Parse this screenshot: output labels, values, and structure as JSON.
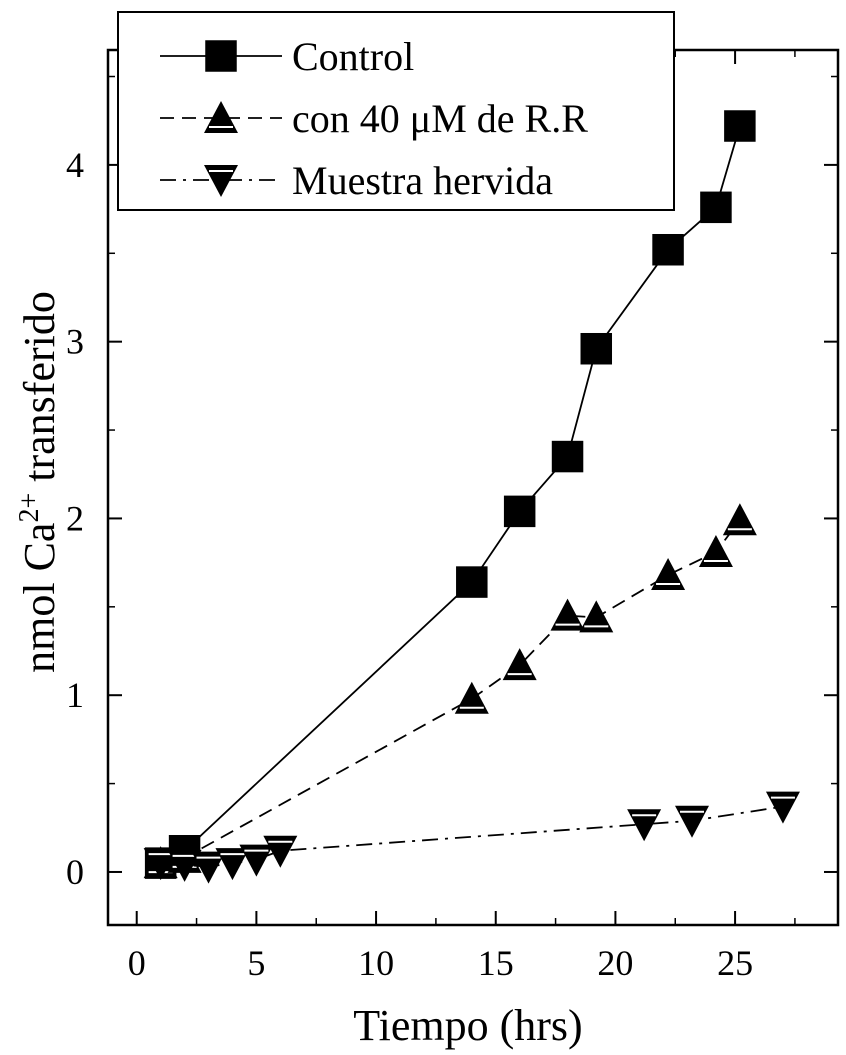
{
  "chart_data": {
    "type": "line",
    "title": "",
    "xlabel": "Tiempo (hrs)",
    "ylabel_parts": {
      "prefix": "nmol Ca",
      "superscript": "2+",
      "suffix": " transferido"
    },
    "xlim": [
      -1.2,
      29.3
    ],
    "ylim": [
      -0.3,
      4.65
    ],
    "x_ticks": [
      0,
      5,
      10,
      15,
      20,
      25
    ],
    "y_ticks": [
      0,
      1,
      2,
      3,
      4
    ],
    "x_tick_labels": [
      "0",
      "5",
      "10",
      "15",
      "20",
      "25"
    ],
    "y_tick_labels": [
      "0",
      "1",
      "2",
      "3",
      "4"
    ],
    "grid": false,
    "legend_position": "top-left",
    "series": [
      {
        "name": "Control",
        "marker": "square",
        "line_style": "solid",
        "color": "#000000",
        "x": [
          1,
          2,
          14,
          16,
          18,
          19.2,
          22.2,
          24.2,
          25.2
        ],
        "y": [
          0.05,
          0.12,
          1.64,
          2.04,
          2.35,
          2.96,
          3.52,
          3.76,
          4.22
        ]
      },
      {
        "name": "con 40 μM de R.R",
        "marker": "triangle-up",
        "line_style": "dash",
        "color": "#000000",
        "x": [
          1,
          2,
          14,
          16,
          18,
          19.2,
          22.2,
          24.2,
          25.2
        ],
        "y": [
          0.05,
          0.08,
          0.98,
          1.17,
          1.45,
          1.44,
          1.68,
          1.81,
          1.99
        ]
      },
      {
        "name": "Muestra hervida",
        "marker": "triangle-down",
        "line_style": "dashdot",
        "color": "#000000",
        "x": [
          1,
          2,
          3,
          4,
          5,
          6,
          21.2,
          23.2,
          27
        ],
        "y": [
          0.05,
          0.04,
          0.03,
          0.05,
          0.07,
          0.12,
          0.27,
          0.29,
          0.37
        ]
      }
    ]
  }
}
